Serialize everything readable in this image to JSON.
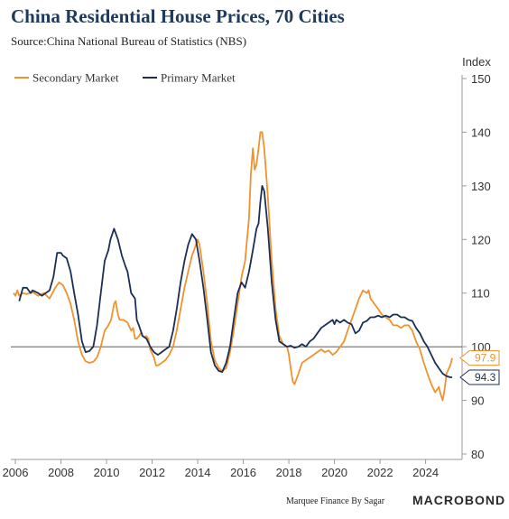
{
  "header": {
    "title": "China Residential House Prices, 70 Cities",
    "subtitle": "Source:China National Bureau of Statistics (NBS)"
  },
  "footer": {
    "credit": "Marquee Finance By Sagar",
    "brand": "MACROBOND"
  },
  "colors": {
    "secondary": "#f0922e",
    "primary": "#1b2f55",
    "axis": "#999999",
    "refline": "#444444"
  },
  "chart_data": {
    "type": "line",
    "ylabel": "Index",
    "ylim": [
      80,
      150
    ],
    "xlim": [
      2005.8,
      2025.6
    ],
    "yticks": [
      80,
      90,
      100,
      110,
      120,
      130,
      140,
      150
    ],
    "xticks": [
      2006,
      2008,
      2010,
      2012,
      2014,
      2016,
      2018,
      2020,
      2022,
      2024
    ],
    "reference_line": 100,
    "legend_position": "top-left",
    "series": [
      {
        "name": "Secondary Market",
        "last_label": "97.9",
        "points": [
          [
            2005.92,
            110
          ],
          [
            2006.0,
            109.5
          ],
          [
            2006.08,
            110.5
          ],
          [
            2006.17,
            109.5
          ],
          [
            2006.33,
            110
          ],
          [
            2006.5,
            109.8
          ],
          [
            2006.75,
            110.2
          ],
          [
            2007.0,
            109.5
          ],
          [
            2007.25,
            110
          ],
          [
            2007.5,
            109
          ],
          [
            2007.75,
            111
          ],
          [
            2007.92,
            112
          ],
          [
            2008.08,
            111.5
          ],
          [
            2008.25,
            110
          ],
          [
            2008.42,
            108
          ],
          [
            2008.58,
            105
          ],
          [
            2008.75,
            101
          ],
          [
            2008.92,
            98.5
          ],
          [
            2009.08,
            97.3
          ],
          [
            2009.25,
            97
          ],
          [
            2009.42,
            97.2
          ],
          [
            2009.58,
            98
          ],
          [
            2009.75,
            100
          ],
          [
            2009.92,
            103
          ],
          [
            2010.08,
            104
          ],
          [
            2010.2,
            105
          ],
          [
            2010.33,
            108
          ],
          [
            2010.4,
            108.5
          ],
          [
            2010.5,
            106
          ],
          [
            2010.58,
            105
          ],
          [
            2010.75,
            105
          ],
          [
            2010.92,
            104.5
          ],
          [
            2011.08,
            103
          ],
          [
            2011.17,
            103.5
          ],
          [
            2011.25,
            101.5
          ],
          [
            2011.33,
            101.5
          ],
          [
            2011.42,
            102
          ],
          [
            2011.5,
            102.5
          ],
          [
            2011.58,
            102
          ],
          [
            2011.67,
            101.8
          ],
          [
            2011.75,
            102
          ],
          [
            2011.83,
            101.5
          ],
          [
            2011.92,
            99.5
          ],
          [
            2012.08,
            98
          ],
          [
            2012.17,
            96.5
          ],
          [
            2012.25,
            96.5
          ],
          [
            2012.42,
            97
          ],
          [
            2012.58,
            97.5
          ],
          [
            2012.75,
            98.5
          ],
          [
            2012.92,
            100
          ],
          [
            2013.08,
            103
          ],
          [
            2013.25,
            107
          ],
          [
            2013.42,
            111
          ],
          [
            2013.58,
            114
          ],
          [
            2013.75,
            117
          ],
          [
            2013.92,
            119
          ],
          [
            2014.0,
            120
          ],
          [
            2014.08,
            119
          ],
          [
            2014.25,
            114
          ],
          [
            2014.42,
            108
          ],
          [
            2014.58,
            101
          ],
          [
            2014.75,
            97.5
          ],
          [
            2014.92,
            96
          ],
          [
            2015.08,
            95.5
          ],
          [
            2015.25,
            96
          ],
          [
            2015.42,
            99
          ],
          [
            2015.58,
            103
          ],
          [
            2015.75,
            108
          ],
          [
            2015.92,
            113
          ],
          [
            2016.08,
            116
          ],
          [
            2016.25,
            124
          ],
          [
            2016.33,
            132
          ],
          [
            2016.42,
            137
          ],
          [
            2016.5,
            133
          ],
          [
            2016.58,
            134
          ],
          [
            2016.67,
            137
          ],
          [
            2016.75,
            140
          ],
          [
            2016.83,
            140
          ],
          [
            2016.92,
            137
          ],
          [
            2017.08,
            128
          ],
          [
            2017.25,
            116
          ],
          [
            2017.42,
            107
          ],
          [
            2017.58,
            102
          ],
          [
            2017.75,
            100.5
          ],
          [
            2017.92,
            100
          ],
          [
            2018.0,
            98.5
          ],
          [
            2018.08,
            96
          ],
          [
            2018.17,
            93.5
          ],
          [
            2018.25,
            93
          ],
          [
            2018.42,
            95
          ],
          [
            2018.58,
            97
          ],
          [
            2018.75,
            97.5
          ],
          [
            2018.92,
            98
          ],
          [
            2019.08,
            98.5
          ],
          [
            2019.25,
            99
          ],
          [
            2019.42,
            99.5
          ],
          [
            2019.58,
            99
          ],
          [
            2019.75,
            99.3
          ],
          [
            2019.92,
            98.5
          ],
          [
            2020.08,
            99
          ],
          [
            2020.25,
            100
          ],
          [
            2020.42,
            101
          ],
          [
            2020.58,
            103
          ],
          [
            2020.75,
            105
          ],
          [
            2020.92,
            107
          ],
          [
            2021.08,
            109
          ],
          [
            2021.25,
            110.5
          ],
          [
            2021.42,
            110
          ],
          [
            2021.5,
            110.5
          ],
          [
            2021.58,
            109
          ],
          [
            2021.75,
            108
          ],
          [
            2021.92,
            107
          ],
          [
            2022.08,
            106
          ],
          [
            2022.25,
            105.5
          ],
          [
            2022.42,
            105
          ],
          [
            2022.58,
            104
          ],
          [
            2022.75,
            104
          ],
          [
            2022.92,
            103.5
          ],
          [
            2023.08,
            104
          ],
          [
            2023.25,
            104
          ],
          [
            2023.42,
            103
          ],
          [
            2023.58,
            101
          ],
          [
            2023.75,
            99.5
          ],
          [
            2023.92,
            97
          ],
          [
            2024.08,
            95
          ],
          [
            2024.25,
            93
          ],
          [
            2024.42,
            91.5
          ],
          [
            2024.58,
            92.5
          ],
          [
            2024.67,
            91
          ],
          [
            2024.75,
            90
          ],
          [
            2024.83,
            92
          ],
          [
            2024.92,
            95
          ],
          [
            2025.08,
            96.5
          ],
          [
            2025.17,
            97.9
          ]
        ]
      },
      {
        "name": "Primary Market",
        "last_label": "94.3",
        "points": [
          [
            2006.17,
            108.5
          ],
          [
            2006.33,
            111
          ],
          [
            2006.5,
            111
          ],
          [
            2006.58,
            110.5
          ],
          [
            2006.67,
            110
          ],
          [
            2006.75,
            110.5
          ],
          [
            2007.0,
            110
          ],
          [
            2007.17,
            109.5
          ],
          [
            2007.33,
            110
          ],
          [
            2007.5,
            110.5
          ],
          [
            2007.67,
            113
          ],
          [
            2007.83,
            117.5
          ],
          [
            2008.0,
            117.5
          ],
          [
            2008.08,
            117
          ],
          [
            2008.25,
            116.5
          ],
          [
            2008.42,
            114
          ],
          [
            2008.58,
            110
          ],
          [
            2008.75,
            106
          ],
          [
            2008.92,
            101
          ],
          [
            2009.08,
            99
          ],
          [
            2009.25,
            99.2
          ],
          [
            2009.42,
            100
          ],
          [
            2009.58,
            104
          ],
          [
            2009.75,
            110
          ],
          [
            2009.92,
            116
          ],
          [
            2010.08,
            118
          ],
          [
            2010.17,
            120
          ],
          [
            2010.33,
            122
          ],
          [
            2010.5,
            120
          ],
          [
            2010.67,
            117
          ],
          [
            2010.83,
            115
          ],
          [
            2010.92,
            114
          ],
          [
            2011.08,
            110
          ],
          [
            2011.25,
            109
          ],
          [
            2011.33,
            105
          ],
          [
            2011.42,
            104
          ],
          [
            2011.5,
            103
          ],
          [
            2011.58,
            102
          ],
          [
            2011.75,
            101.5
          ],
          [
            2011.92,
            100
          ],
          [
            2012.08,
            99
          ],
          [
            2012.25,
            98.5
          ],
          [
            2012.42,
            99
          ],
          [
            2012.58,
            99.5
          ],
          [
            2012.75,
            100
          ],
          [
            2012.92,
            103
          ],
          [
            2013.08,
            107
          ],
          [
            2013.25,
            112
          ],
          [
            2013.42,
            116
          ],
          [
            2013.58,
            119
          ],
          [
            2013.75,
            121
          ],
          [
            2013.92,
            120
          ],
          [
            2014.08,
            116
          ],
          [
            2014.25,
            111
          ],
          [
            2014.42,
            105
          ],
          [
            2014.58,
            99
          ],
          [
            2014.75,
            96.5
          ],
          [
            2014.92,
            95.5
          ],
          [
            2015.08,
            95.3
          ],
          [
            2015.25,
            97
          ],
          [
            2015.42,
            100
          ],
          [
            2015.58,
            105
          ],
          [
            2015.75,
            110
          ],
          [
            2015.92,
            112
          ],
          [
            2016.08,
            111
          ],
          [
            2016.25,
            114
          ],
          [
            2016.42,
            118
          ],
          [
            2016.58,
            122
          ],
          [
            2016.67,
            123
          ],
          [
            2016.75,
            127
          ],
          [
            2016.83,
            130
          ],
          [
            2016.92,
            129
          ],
          [
            2017.08,
            122
          ],
          [
            2017.25,
            112
          ],
          [
            2017.42,
            105
          ],
          [
            2017.58,
            101
          ],
          [
            2017.75,
            100.5
          ],
          [
            2017.92,
            100
          ],
          [
            2018.08,
            100.2
          ],
          [
            2018.25,
            99.8
          ],
          [
            2018.42,
            100
          ],
          [
            2018.58,
            100.5
          ],
          [
            2018.75,
            100
          ],
          [
            2018.92,
            101
          ],
          [
            2019.08,
            101.5
          ],
          [
            2019.25,
            102.5
          ],
          [
            2019.42,
            103.5
          ],
          [
            2019.58,
            104
          ],
          [
            2019.75,
            104.5
          ],
          [
            2019.92,
            105
          ],
          [
            2020.0,
            104.2
          ],
          [
            2020.08,
            105
          ],
          [
            2020.25,
            104.5
          ],
          [
            2020.42,
            105
          ],
          [
            2020.58,
            104.5
          ],
          [
            2020.75,
            104.2
          ],
          [
            2020.92,
            102.5
          ],
          [
            2021.08,
            103
          ],
          [
            2021.25,
            104.5
          ],
          [
            2021.42,
            104.8
          ],
          [
            2021.58,
            105.5
          ],
          [
            2021.75,
            105.5
          ],
          [
            2021.92,
            105.8
          ],
          [
            2022.08,
            105.5
          ],
          [
            2022.25,
            105.8
          ],
          [
            2022.42,
            105.5
          ],
          [
            2022.58,
            106
          ],
          [
            2022.75,
            106
          ],
          [
            2022.92,
            105.5
          ],
          [
            2023.08,
            105.5
          ],
          [
            2023.25,
            105
          ],
          [
            2023.42,
            104.8
          ],
          [
            2023.58,
            103.5
          ],
          [
            2023.75,
            102.5
          ],
          [
            2023.92,
            101
          ],
          [
            2024.08,
            100
          ],
          [
            2024.25,
            98.5
          ],
          [
            2024.42,
            97
          ],
          [
            2024.58,
            96
          ],
          [
            2024.75,
            95
          ],
          [
            2024.92,
            94.5
          ],
          [
            2025.08,
            94.3
          ],
          [
            2025.17,
            94.3
          ]
        ]
      }
    ]
  }
}
